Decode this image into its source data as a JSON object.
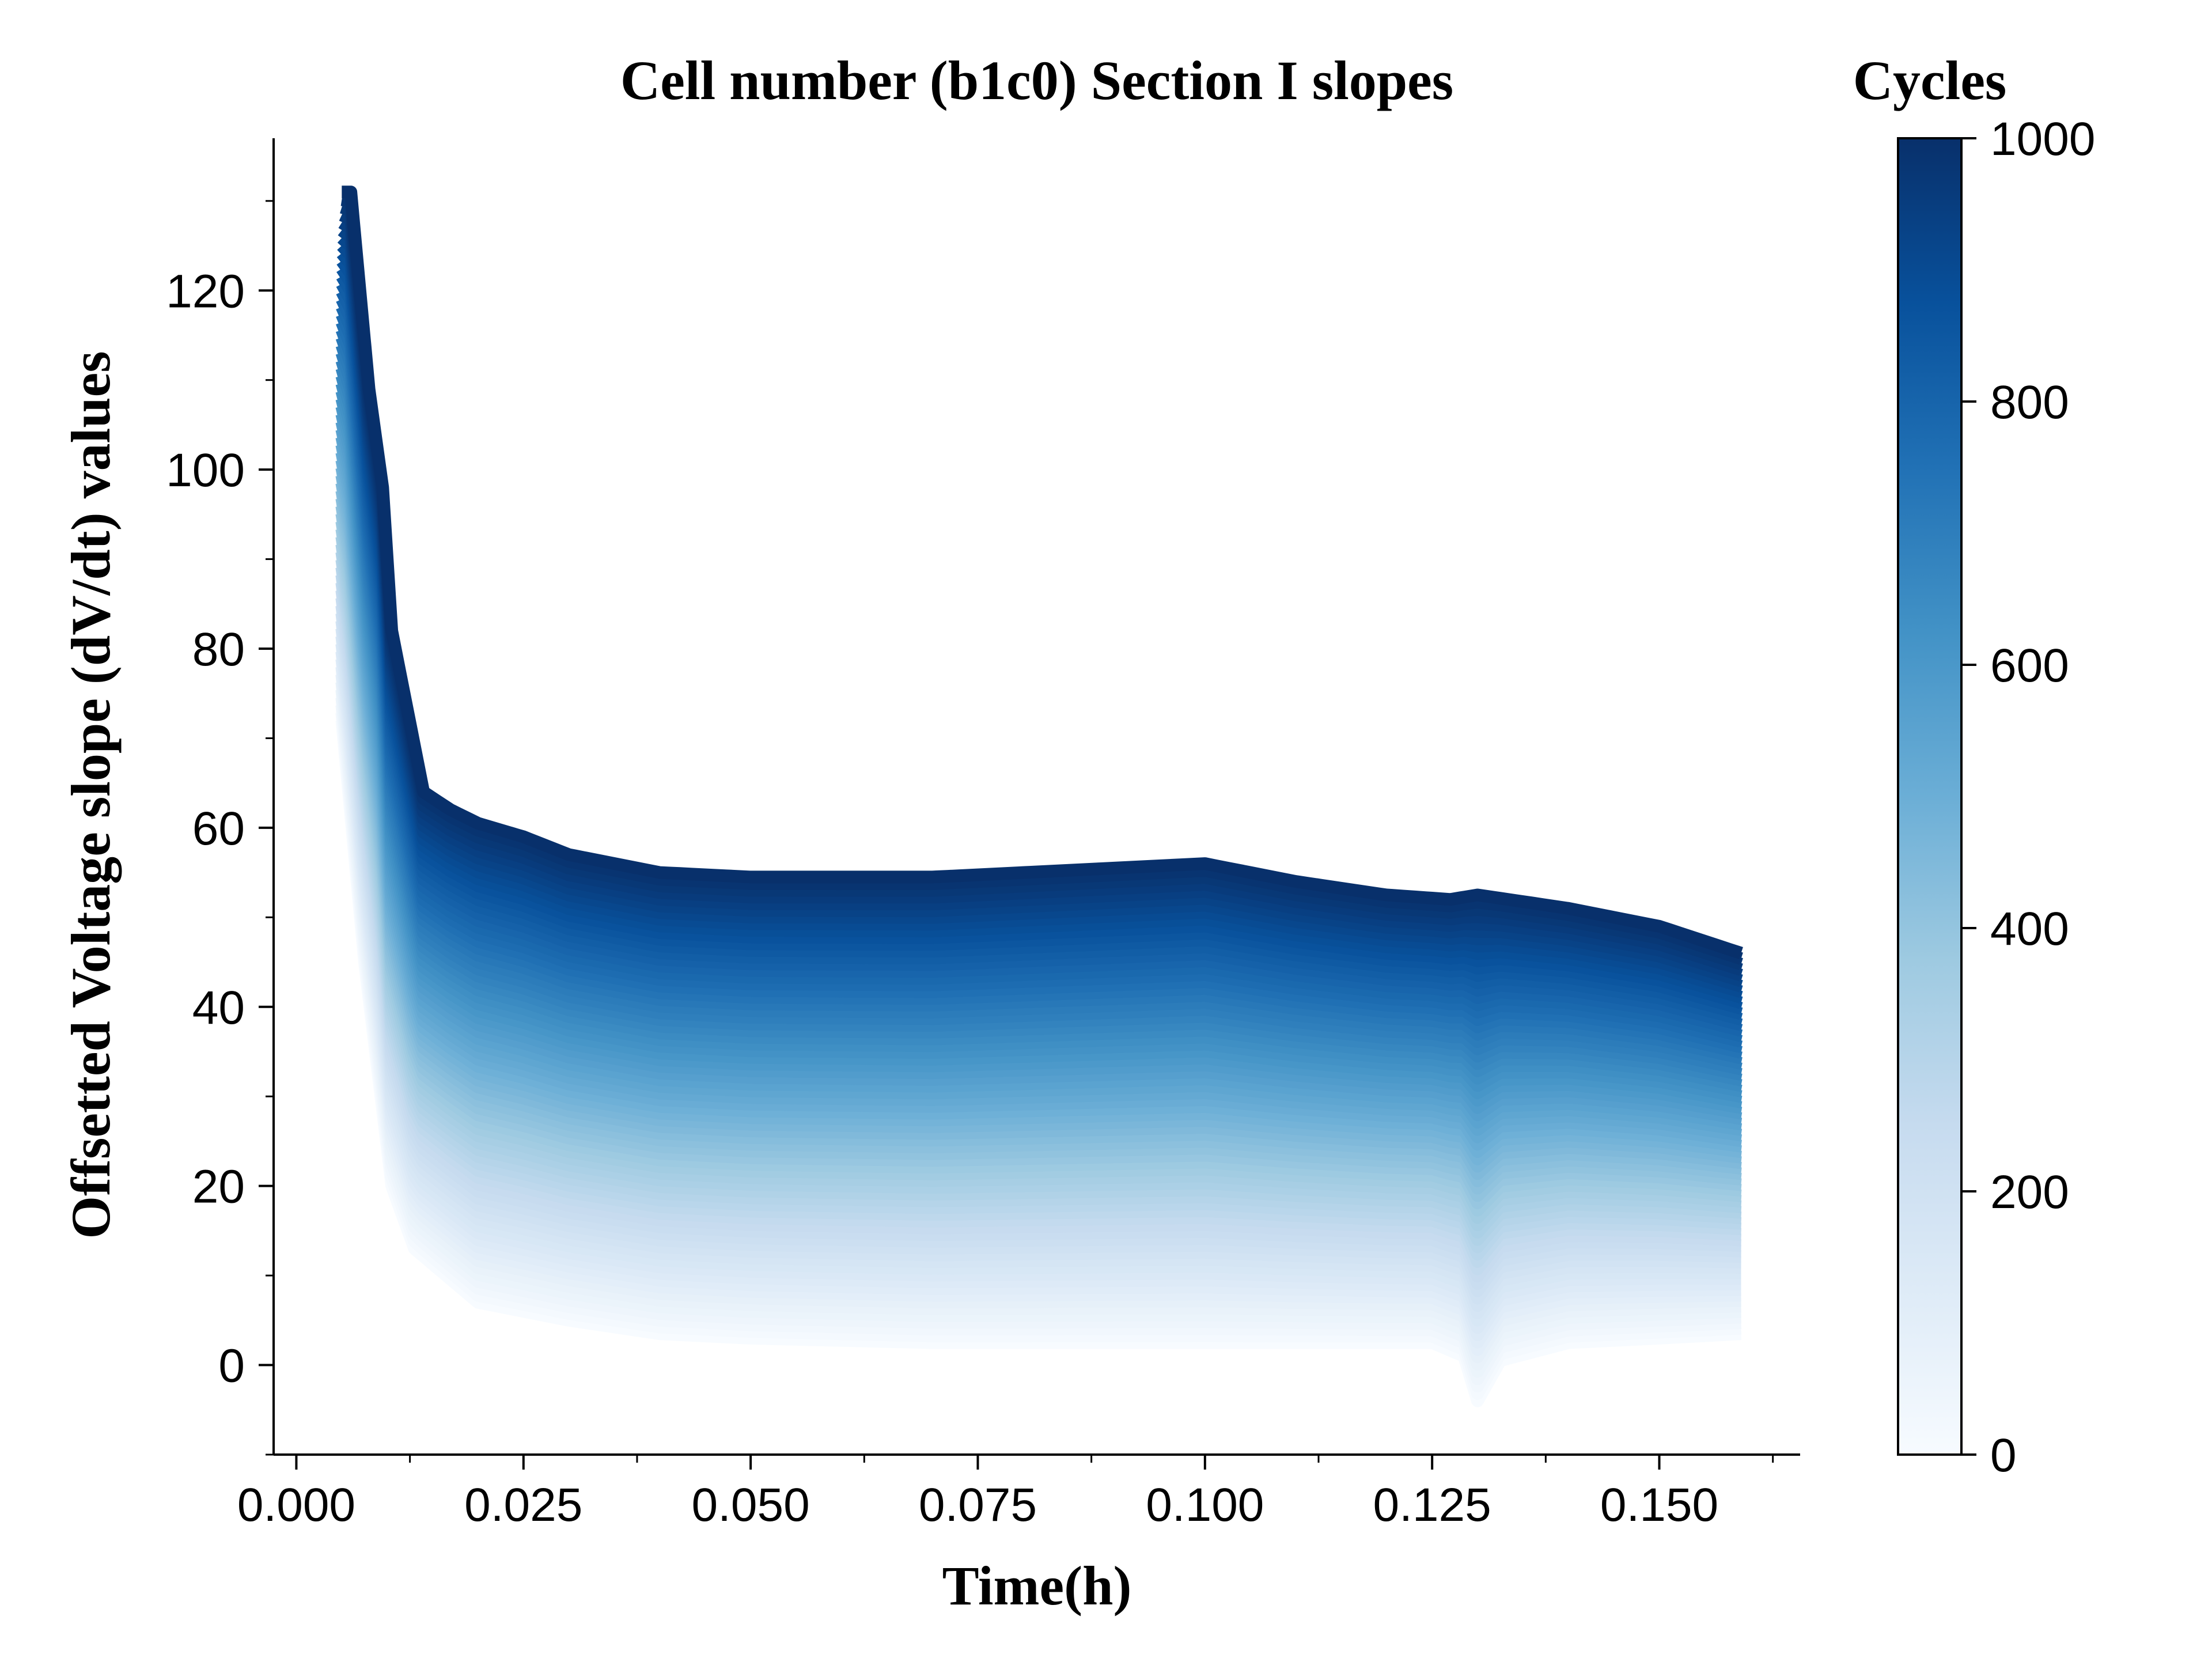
{
  "chart_data": {
    "type": "line",
    "title": "Cell number (b1c0) Section I slopes",
    "xlabel": "Time(h)",
    "ylabel": "Offsetted Voltage slope (dV/dt) values",
    "xlim": [
      -0.0025,
      0.1655
    ],
    "ylim": [
      -10,
      137
    ],
    "x_ticks": [
      0.0,
      0.025,
      0.05,
      0.075,
      0.1,
      0.125,
      0.15
    ],
    "x_tick_labels": [
      "0.000",
      "0.025",
      "0.050",
      "0.075",
      "0.100",
      "0.125",
      "0.150"
    ],
    "y_ticks": [
      0,
      20,
      40,
      60,
      80,
      100,
      120
    ],
    "y_tick_labels": [
      "0",
      "20",
      "40",
      "60",
      "80",
      "100",
      "120"
    ],
    "grid": false,
    "colormap": "Blues",
    "colormap_stops": [
      "#f7fbff",
      "#deebf7",
      "#c6dbef",
      "#9ecae1",
      "#6baed6",
      "#4292c6",
      "#2171b5",
      "#08519c",
      "#08306b"
    ],
    "colorbar": {
      "label": "Cycles",
      "range": [
        0,
        1000
      ],
      "ticks": [
        0,
        200,
        400,
        600,
        800,
        1000
      ],
      "tick_labels": [
        "0",
        "200",
        "400",
        "600",
        "800",
        "1000"
      ]
    },
    "series": [
      {
        "cycle": 1000,
        "x": [
          0.005,
          0.006,
          0.008,
          0.0095,
          0.0105,
          0.014,
          0.017,
          0.02,
          0.025,
          0.03,
          0.04,
          0.05,
          0.06,
          0.07,
          0.08,
          0.09,
          0.1,
          0.11,
          0.12,
          0.127,
          0.13,
          0.14,
          0.15,
          0.159
        ],
        "y": [
          131,
          131,
          109,
          98,
          82,
          64,
          62,
          60.5,
          59,
          57,
          55,
          54.5,
          54.5,
          54.5,
          55,
          55.5,
          56,
          54,
          52.5,
          52,
          52.5,
          51,
          49,
          46
        ]
      },
      {
        "cycle": 0,
        "x": [
          0.005,
          0.0075,
          0.0105,
          0.013,
          0.02,
          0.03,
          0.04,
          0.05,
          0.07,
          0.09,
          0.11,
          0.125,
          0.1285,
          0.13,
          0.1325,
          0.14,
          0.15,
          0.159
        ],
        "y": [
          72,
          45,
          20,
          13,
          7,
          5,
          3.5,
          3,
          2.5,
          2.5,
          2.5,
          2.5,
          1,
          -4,
          0.5,
          2.5,
          3,
          3.5
        ]
      }
    ]
  }
}
